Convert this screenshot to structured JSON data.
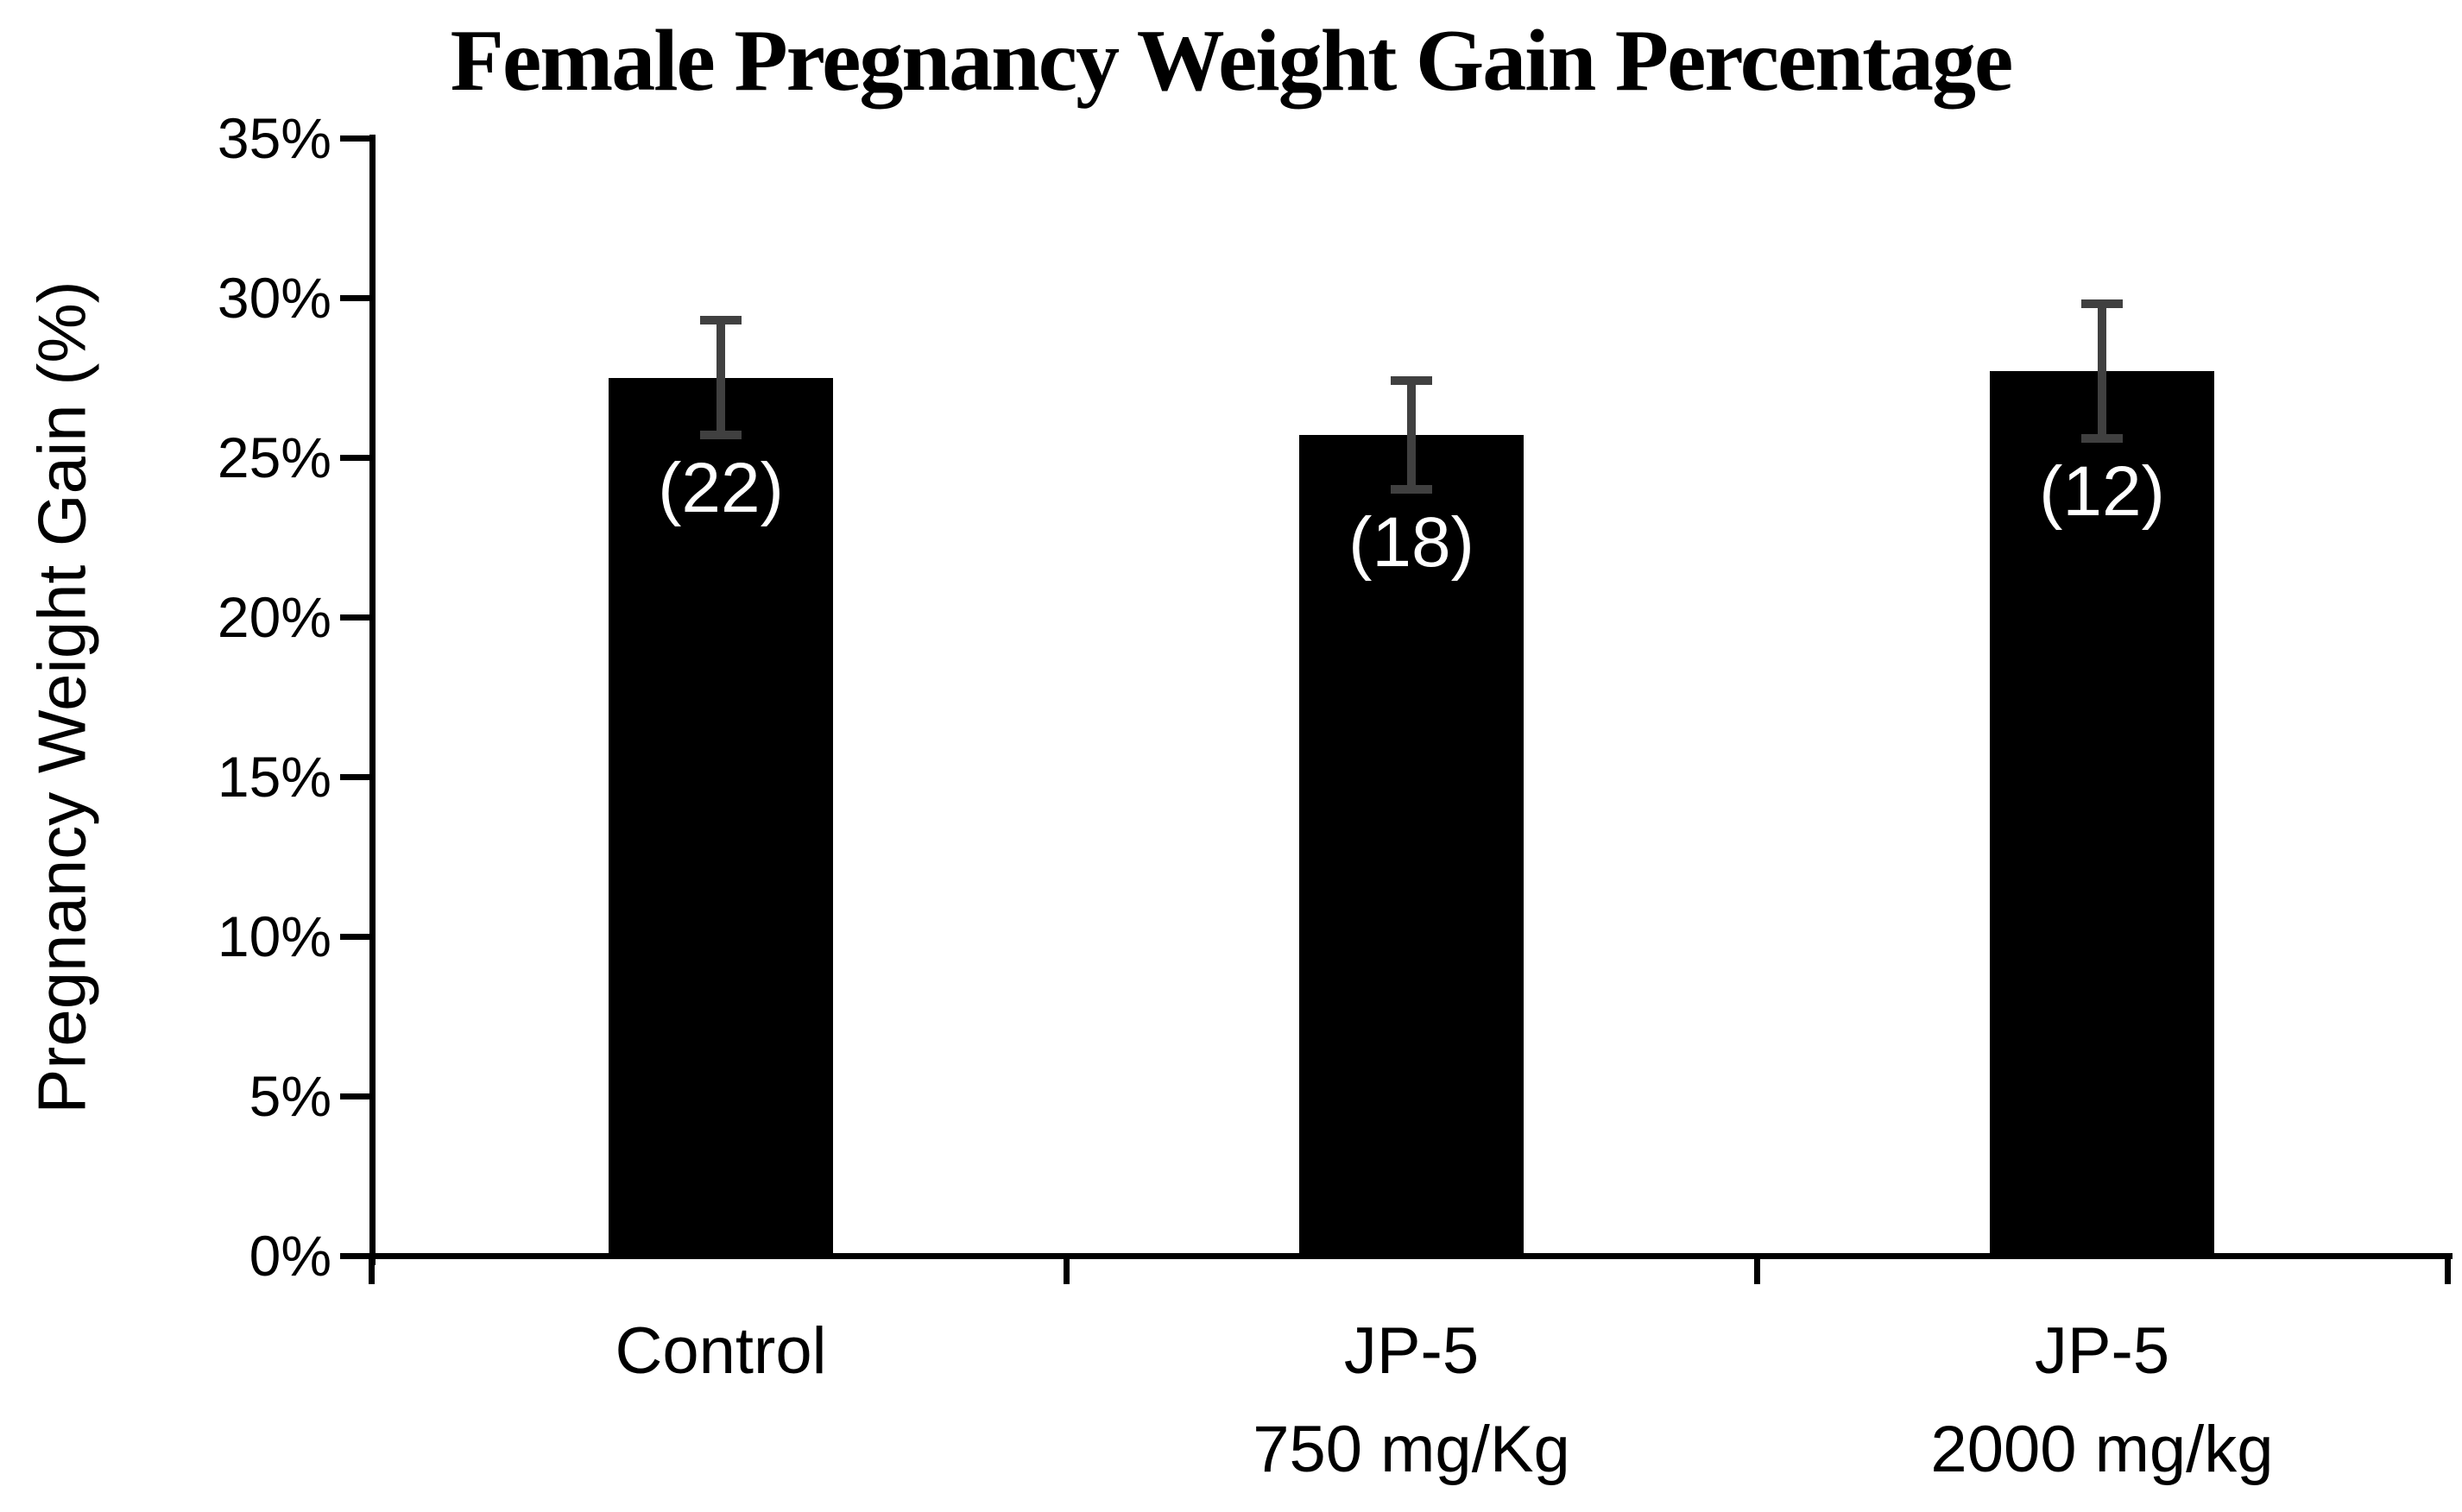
{
  "chart_data": {
    "type": "bar",
    "title": "Female Pregnancy Weight Gain Percentage",
    "ylabel": "Pregnancy Weight Gain (%)",
    "xlabel": "",
    "ylim": [
      0,
      35
    ],
    "ytick_step": 5,
    "ytick_suffix": "%",
    "grid": false,
    "legend": false,
    "bar_color": "#000000",
    "error_bar_color": "#404040",
    "bar_label_color": "#ffffff",
    "categories": [
      {
        "line1": "Control",
        "line2": ""
      },
      {
        "line1": "JP-5",
        "line2": "750 mg/Kg"
      },
      {
        "line1": "JP-5",
        "line2": "2000 mg/kg"
      }
    ],
    "series": [
      {
        "name": "Pregnancy Weight Gain (%)",
        "values": [
          27.5,
          25.7,
          27.7
        ],
        "errors": [
          1.8,
          1.7,
          2.1
        ],
        "bar_labels": [
          "(22)",
          "(18)",
          "(12)"
        ]
      }
    ]
  }
}
